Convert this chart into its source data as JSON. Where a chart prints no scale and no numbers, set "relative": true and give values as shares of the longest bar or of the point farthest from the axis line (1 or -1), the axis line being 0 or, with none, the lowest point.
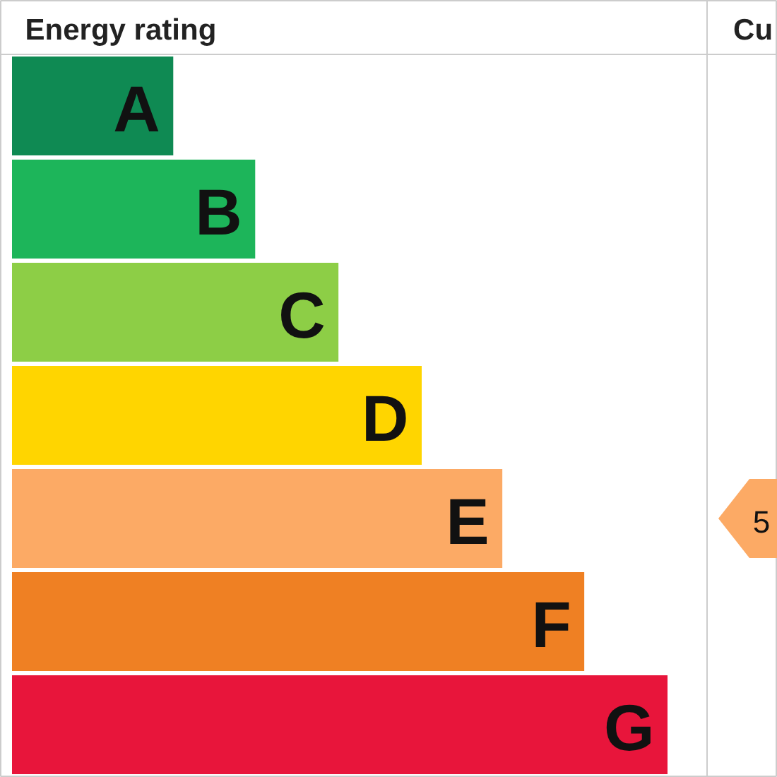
{
  "chart_data": {
    "type": "bar",
    "orientation": "horizontal",
    "relative": true,
    "title": "Energy rating",
    "categories": [
      "A",
      "B",
      "C",
      "D",
      "E",
      "F",
      "G"
    ],
    "values": [
      0.246,
      0.371,
      0.498,
      0.625,
      0.748,
      0.873,
      1
    ],
    "colors": [
      "#0f8a53",
      "#1db55a",
      "#8dce46",
      "#ffd500",
      "#fcaa65",
      "#ef8023",
      "#e8153b"
    ],
    "annotations": [
      "Cu",
      "5"
    ]
  }
}
